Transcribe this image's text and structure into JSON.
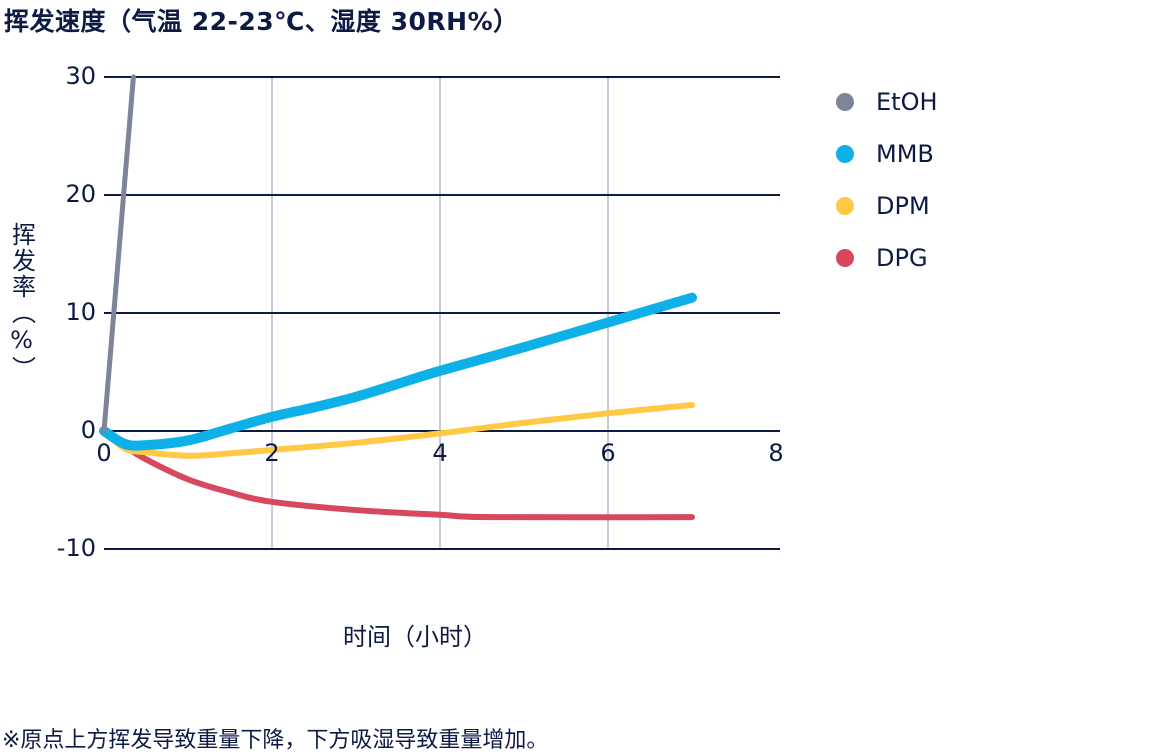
{
  "title": "挥发速度（气温 22-23℃、湿度 30RH%）",
  "footnote": "※原点上方挥发导致重量下降，下方吸湿导致重量增加。",
  "colors": {
    "text": "#0d1a44",
    "h_grid": "#0d1a44",
    "v_grid": "#c9ccd8",
    "EtOH": "#7e8599",
    "MMB": "#0db1e8",
    "DPM": "#ffc845",
    "DPG": "#d7475e"
  },
  "chart_data": {
    "type": "line",
    "title": "挥发速度（气温 22-23℃、湿度 30RH%）",
    "xlabel": "时间（小时）",
    "ylabel": "挥发率（%）",
    "xlim": [
      0,
      8
    ],
    "ylim": [
      -10,
      30
    ],
    "x_ticks": [
      "0",
      "2",
      "4",
      "6",
      "8"
    ],
    "y_ticks": [
      "30",
      "20",
      "10",
      "0",
      "-10"
    ],
    "grid": true,
    "legend_position": "right",
    "series": [
      {
        "name": "EtOH",
        "x": [
          0,
          0.35
        ],
        "values": [
          0,
          30
        ]
      },
      {
        "name": "MMB",
        "x": [
          0,
          0.25,
          0.5,
          1,
          1.5,
          2,
          2.5,
          3,
          3.5,
          4,
          5,
          6,
          7
        ],
        "values": [
          0,
          -1.1,
          -1.2,
          -0.8,
          0.2,
          1.2,
          2.0,
          2.9,
          4.0,
          5.1,
          7.1,
          9.2,
          11.3
        ]
      },
      {
        "name": "DPM",
        "x": [
          0,
          0.25,
          0.5,
          1,
          1.5,
          2,
          3,
          4,
          5,
          6,
          7
        ],
        "values": [
          0,
          -1.5,
          -1.8,
          -2.1,
          -1.9,
          -1.6,
          -1.0,
          -0.2,
          0.7,
          1.5,
          2.2
        ]
      },
      {
        "name": "DPG",
        "x": [
          0,
          0.25,
          0.5,
          1,
          1.5,
          2,
          3,
          4,
          4.6,
          7
        ],
        "values": [
          0,
          -1.3,
          -2.4,
          -4.1,
          -5.2,
          -6.0,
          -6.7,
          -7.1,
          -7.3,
          -7.3
        ]
      }
    ]
  },
  "legend": [
    {
      "label": "EtOH"
    },
    {
      "label": "MMB"
    },
    {
      "label": "DPM"
    },
    {
      "label": "DPG"
    }
  ]
}
